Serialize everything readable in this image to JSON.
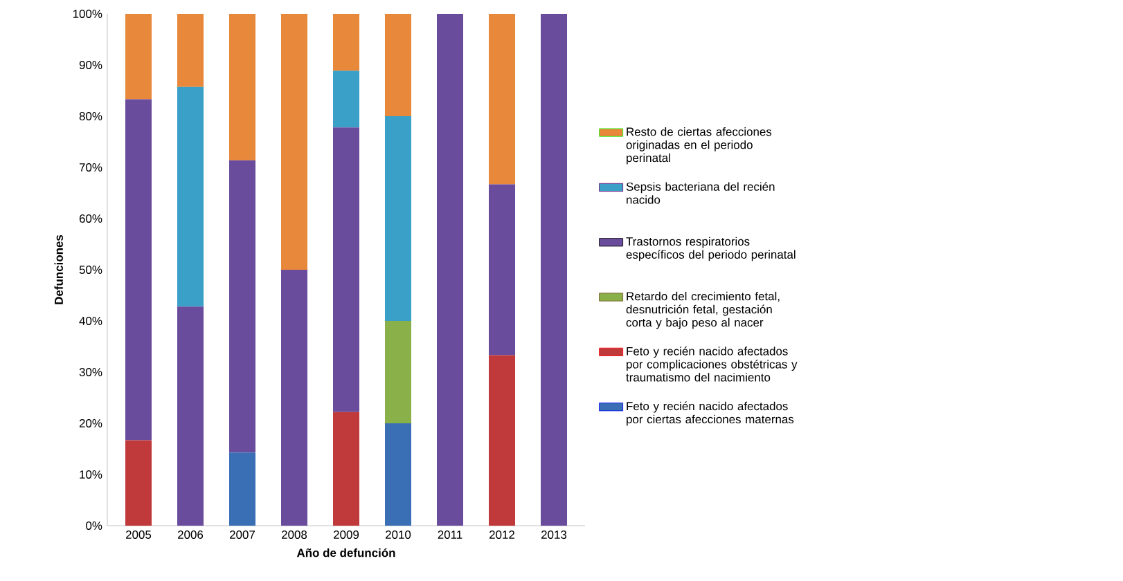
{
  "chart_data": {
    "type": "bar",
    "stacked": true,
    "xlabel": "Año de defunción",
    "ylabel": "Defunciones",
    "categories": [
      "2005",
      "2006",
      "2007",
      "2008",
      "2009",
      "2010",
      "2011",
      "2012",
      "2013"
    ],
    "series": [
      {
        "name": "Feto y recién nacido afectados por ciertas afecciones maternas",
        "color": "#3a6fb5",
        "values": [
          0,
          0,
          14.3,
          0,
          0,
          20,
          0,
          0,
          0
        ]
      },
      {
        "name": "Feto y recién nacido afectados por complicaciones obstétricas y traumatismo del nacimiento",
        "color": "#c0393b",
        "values": [
          16.7,
          0,
          0,
          0,
          22.2,
          0,
          0,
          33.3,
          0
        ]
      },
      {
        "name": "Retardo del crecimiento fetal, desnutrición fetal, gestación corta y bajo peso al nacer",
        "color": "#8ab04a",
        "values": [
          0,
          0,
          0,
          0,
          0,
          20,
          0,
          0,
          0
        ]
      },
      {
        "name": "Trastornos respiratorios específicos del periodo perinatal",
        "color": "#6a4c9c",
        "values": [
          66.6,
          42.8,
          57.1,
          50,
          55.6,
          0,
          100,
          33.4,
          100
        ]
      },
      {
        "name": "Sepsis bacteriana del recién nacido",
        "color": "#3aa0c8",
        "values": [
          0,
          42.9,
          0,
          0,
          11.1,
          40,
          0,
          0,
          0
        ]
      },
      {
        "name": "Resto de ciertas afecciones originadas en el periodo perinatal",
        "color": "#e8883a",
        "values": [
          16.7,
          14.3,
          28.6,
          50,
          11.1,
          20,
          0,
          33.3,
          0
        ]
      }
    ],
    "ylim": [
      0,
      100
    ],
    "yticks": [
      {
        "value": 0,
        "label": "0%"
      },
      {
        "value": 10,
        "label": "10%"
      },
      {
        "value": 20,
        "label": "20%"
      },
      {
        "value": 30,
        "label": "30%"
      },
      {
        "value": 40,
        "label": "40%"
      },
      {
        "value": 50,
        "label": "50%"
      },
      {
        "value": 60,
        "label": "60%"
      },
      {
        "value": 70,
        "label": "70%"
      },
      {
        "value": 80,
        "label": "80%"
      },
      {
        "value": 90,
        "label": "90%"
      },
      {
        "value": 100,
        "label": "100%"
      }
    ],
    "legend": "right"
  }
}
